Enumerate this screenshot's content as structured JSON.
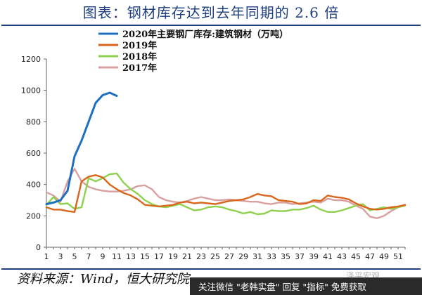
{
  "title": "图表：钢材库存达到去年同期的 2.6 倍",
  "source": "资料来源：Wind，恒大研究院",
  "banner_text": "关注微信 \"老韩实盘\" 回复 \"指标\" 免费获取",
  "watermark": "泽平宏观",
  "colors": {
    "s2020": "#1f6fc0",
    "s2019": "#d9661c",
    "s2018": "#8fd14f",
    "s2017": "#d9a0a0",
    "title": "#1f3f80"
  },
  "chart_data": {
    "type": "line",
    "title": "图表：钢材库存达到去年同期的 2.6 倍",
    "xlabel": "",
    "ylabel": "",
    "xlim": [
      1,
      52
    ],
    "ylim": [
      0,
      1200
    ],
    "x_ticks": [
      1,
      3,
      5,
      7,
      9,
      11,
      13,
      15,
      17,
      19,
      21,
      23,
      25,
      27,
      29,
      31,
      33,
      35,
      37,
      39,
      41,
      43,
      45,
      47,
      49,
      51
    ],
    "y_ticks": [
      0,
      200,
      400,
      600,
      800,
      1000,
      1200
    ],
    "grid": false,
    "legend_position": "top-left",
    "series": [
      {
        "name": "2020年主要钢厂库存:建筑钢材（万吨）",
        "color": "#1f6fc0",
        "x": [
          1,
          2,
          3,
          4,
          5,
          6,
          7,
          8,
          9,
          10,
          11
        ],
        "y": [
          275,
          285,
          300,
          360,
          580,
          680,
          800,
          920,
          970,
          985,
          965
        ]
      },
      {
        "name": "2019年",
        "color": "#d9661c",
        "x": [
          1,
          2,
          3,
          4,
          5,
          6,
          7,
          8,
          9,
          10,
          11,
          12,
          13,
          14,
          15,
          16,
          17,
          18,
          19,
          20,
          21,
          22,
          23,
          24,
          25,
          26,
          27,
          28,
          29,
          30,
          31,
          32,
          33,
          34,
          35,
          36,
          37,
          38,
          39,
          40,
          41,
          42,
          43,
          44,
          45,
          46,
          47,
          48,
          49,
          50,
          51,
          52
        ],
        "y": [
          255,
          240,
          240,
          230,
          225,
          420,
          450,
          460,
          445,
          400,
          370,
          345,
          330,
          305,
          270,
          265,
          260,
          265,
          270,
          285,
          290,
          280,
          285,
          280,
          275,
          285,
          295,
          300,
          305,
          320,
          340,
          330,
          325,
          300,
          295,
          290,
          275,
          280,
          300,
          295,
          330,
          320,
          315,
          305,
          280,
          260,
          245,
          240,
          245,
          255,
          260,
          270
        ]
      },
      {
        "name": "2018年",
        "color": "#8fd14f",
        "x": [
          1,
          2,
          3,
          4,
          5,
          6,
          7,
          8,
          9,
          10,
          11,
          12,
          13,
          14,
          15,
          16,
          17,
          18,
          19,
          20,
          21,
          22,
          23,
          24,
          25,
          26,
          27,
          28,
          29,
          30,
          31,
          32,
          33,
          34,
          35,
          36,
          37,
          38,
          39,
          40,
          41,
          42,
          43,
          44,
          45,
          46,
          47,
          48,
          49,
          50,
          51,
          52
        ],
        "y": [
          270,
          320,
          275,
          280,
          245,
          255,
          440,
          420,
          440,
          465,
          470,
          410,
          370,
          340,
          300,
          275,
          260,
          255,
          265,
          275,
          255,
          235,
          240,
          255,
          260,
          255,
          240,
          230,
          215,
          225,
          210,
          215,
          235,
          230,
          230,
          240,
          240,
          250,
          265,
          240,
          225,
          225,
          235,
          250,
          265,
          275,
          235,
          245,
          255,
          245,
          255,
          265
        ]
      },
      {
        "name": "2017年",
        "color": "#d9a0a0",
        "x": [
          1,
          2,
          3,
          4,
          5,
          6,
          7,
          8,
          9,
          10,
          11,
          12,
          13,
          14,
          15,
          16,
          17,
          18,
          19,
          20,
          21,
          22,
          23,
          24,
          25,
          26,
          27,
          28,
          29,
          30,
          31,
          32,
          33,
          34,
          35,
          36,
          37,
          38,
          39,
          40,
          41,
          42,
          43,
          44,
          45,
          46,
          47,
          48,
          49,
          50,
          51,
          52
        ],
        "y": [
          350,
          330,
          290,
          420,
          500,
          420,
          385,
          370,
          360,
          355,
          355,
          360,
          370,
          390,
          395,
          370,
          320,
          300,
          290,
          285,
          295,
          310,
          320,
          310,
          300,
          300,
          305,
          300,
          295,
          290,
          290,
          280,
          275,
          285,
          285,
          275,
          280,
          285,
          290,
          285,
          310,
          300,
          300,
          290,
          265,
          245,
          195,
          185,
          200,
          230,
          255,
          270
        ]
      }
    ]
  }
}
